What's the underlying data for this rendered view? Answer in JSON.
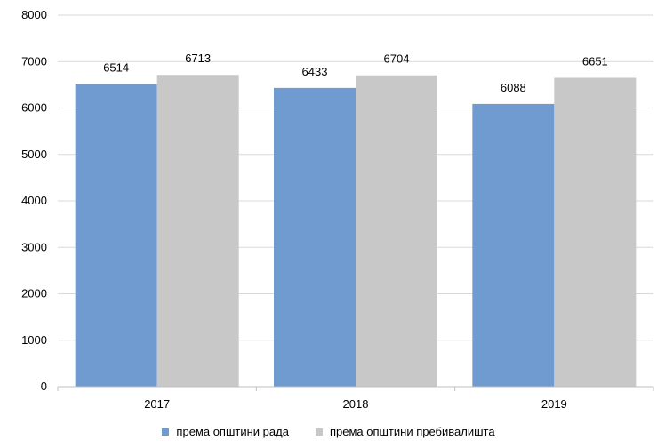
{
  "chart_data": {
    "type": "bar",
    "categories": [
      "2017",
      "2018",
      "2019"
    ],
    "series": [
      {
        "name": "према општини рада",
        "values": [
          6514,
          6433,
          6088
        ],
        "color": "#709bd0"
      },
      {
        "name": "према општини пребивалишта",
        "values": [
          6713,
          6704,
          6651
        ],
        "color": "#c8c8c8"
      }
    ],
    "ylim": [
      0,
      8000
    ],
    "yticks": [
      0,
      1000,
      2000,
      3000,
      4000,
      5000,
      6000,
      7000,
      8000
    ],
    "grid": true,
    "gridline_color": "#d9d9d9",
    "legend_position": "bottom",
    "data_labels": true,
    "title": "",
    "xlabel": "",
    "ylabel": ""
  }
}
